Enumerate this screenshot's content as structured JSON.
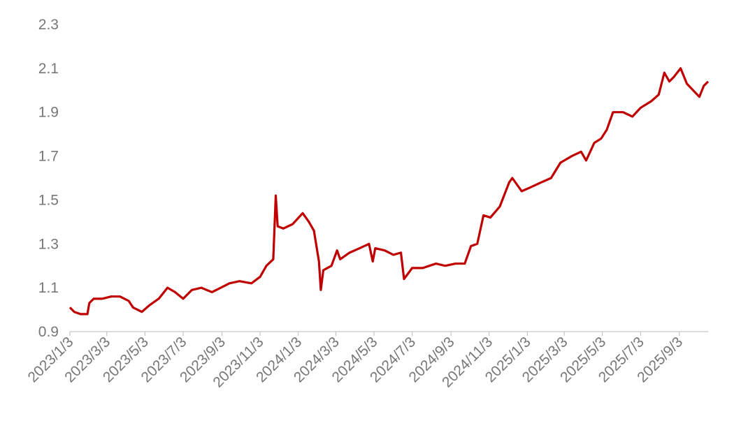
{
  "chart_data": {
    "type": "line",
    "x": [
      "2023/1/3",
      "2023/1/10",
      "2023/1/20",
      "2023/1/31",
      "2023/2/3",
      "2023/2/10",
      "2023/2/24",
      "2023/3/10",
      "2023/3/24",
      "2023/4/7",
      "2023/4/14",
      "2023/4/28",
      "2023/5/10",
      "2023/5/25",
      "2023/6/8",
      "2023/6/20",
      "2023/7/3",
      "2023/7/17",
      "2023/8/1",
      "2023/8/18",
      "2023/9/1",
      "2023/9/15",
      "2023/10/1",
      "2023/10/20",
      "2023/11/3",
      "2023/11/13",
      "2023/11/24",
      "2023/11/28",
      "2023/12/1",
      "2023/12/10",
      "2023/12/25",
      "2024/1/10",
      "2024/1/20",
      "2024/1/28",
      "2024/2/5",
      "2024/2/8",
      "2024/2/12",
      "2024/2/25",
      "2024/3/5",
      "2024/3/10",
      "2024/3/25",
      "2024/4/10",
      "2024/4/25",
      "2024/5/1",
      "2024/5/5",
      "2024/5/20",
      "2024/6/3",
      "2024/6/15",
      "2024/6/20",
      "2024/7/3",
      "2024/7/20",
      "2024/8/10",
      "2024/8/25",
      "2024/9/10",
      "2024/9/25",
      "2024/10/5",
      "2024/10/15",
      "2024/10/25",
      "2024/11/5",
      "2024/11/20",
      "2024/12/5",
      "2024/12/10",
      "2024/12/25",
      "2025/1/10",
      "2025/1/25",
      "2025/2/10",
      "2025/2/25",
      "2025/3/15",
      "2025/3/30",
      "2025/4/7",
      "2025/4/20",
      "2025/5/1",
      "2025/5/10",
      "2025/5/20",
      "2025/6/5",
      "2025/6/20",
      "2025/7/3",
      "2025/7/20",
      "2025/8/1",
      "2025/8/10",
      "2025/8/18",
      "2025/8/25",
      "2025/9/5",
      "2025/9/15",
      "2025/9/25",
      "2025/10/5",
      "2025/10/12",
      "2025/10/19"
    ],
    "series": [
      {
        "color": "#c00000",
        "values": [
          1.01,
          0.99,
          0.98,
          0.98,
          1.03,
          1.05,
          1.05,
          1.06,
          1.06,
          1.04,
          1.01,
          0.99,
          1.02,
          1.05,
          1.1,
          1.08,
          1.05,
          1.09,
          1.1,
          1.08,
          1.1,
          1.12,
          1.13,
          1.12,
          1.15,
          1.2,
          1.23,
          1.52,
          1.38,
          1.37,
          1.39,
          1.44,
          1.4,
          1.36,
          1.22,
          1.09,
          1.18,
          1.2,
          1.27,
          1.23,
          1.26,
          1.28,
          1.3,
          1.22,
          1.28,
          1.27,
          1.25,
          1.26,
          1.14,
          1.19,
          1.19,
          1.21,
          1.2,
          1.21,
          1.21,
          1.29,
          1.3,
          1.43,
          1.42,
          1.47,
          1.58,
          1.6,
          1.54,
          1.56,
          1.58,
          1.6,
          1.67,
          1.7,
          1.72,
          1.68,
          1.76,
          1.78,
          1.82,
          1.9,
          1.9,
          1.88,
          1.92,
          1.95,
          1.98,
          2.08,
          2.04,
          2.06,
          2.1,
          2.03,
          2.0,
          1.97,
          2.02,
          2.04
        ]
      }
    ],
    "xlim": [
      "2023/1/3",
      "2025/10/19"
    ],
    "xticks": [
      "2023/1/3",
      "2023/3/3",
      "2023/5/3",
      "2023/7/3",
      "2023/9/3",
      "2023/11/3",
      "2024/1/3",
      "2024/3/3",
      "2024/5/3",
      "2024/7/3",
      "2024/9/3",
      "2024/11/3",
      "2025/1/3",
      "2025/3/3",
      "2025/5/3",
      "2025/7/3",
      "2025/9/3"
    ],
    "ylim": [
      0.9,
      2.3
    ],
    "yticks": [
      0.9,
      1.1,
      1.3,
      1.5,
      1.7,
      1.9,
      2.1,
      2.3
    ],
    "grid": false
  }
}
